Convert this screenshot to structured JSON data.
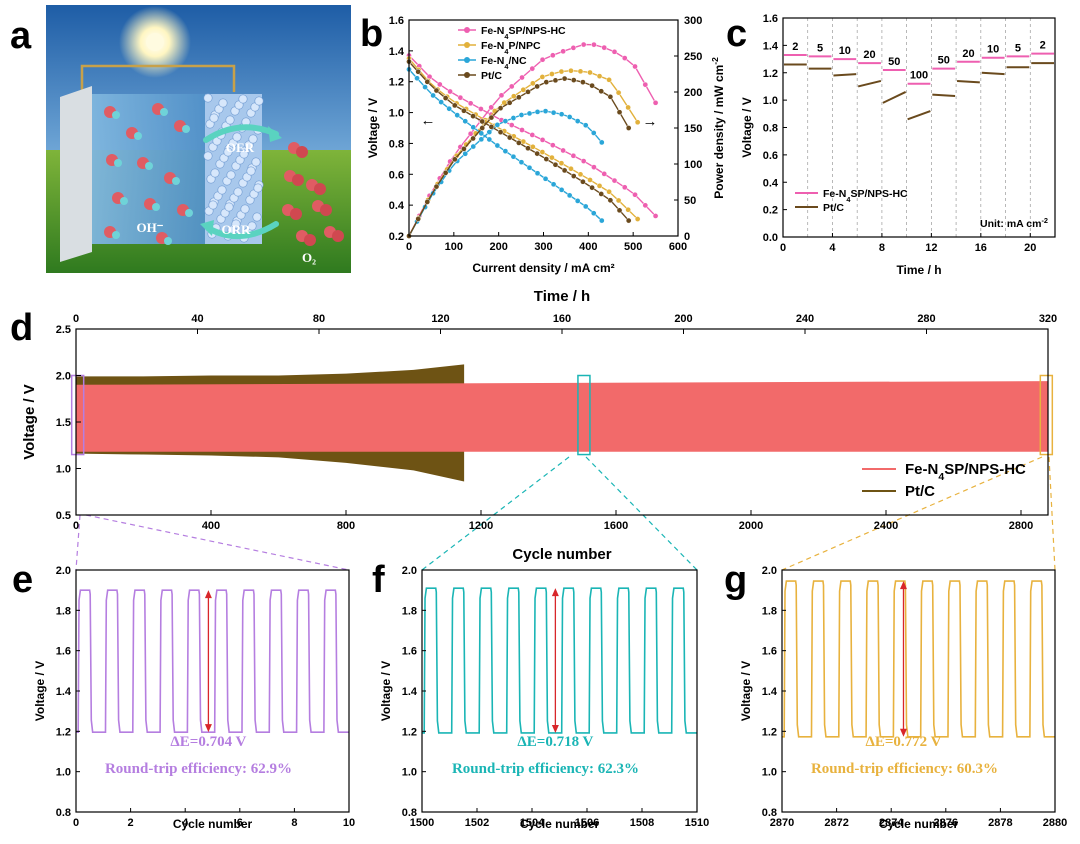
{
  "panel_labels": [
    "a",
    "b",
    "c",
    "d",
    "e",
    "f",
    "g"
  ],
  "schematic": {
    "labels": {
      "oer": "OER",
      "orr": "ORR",
      "oh": "OH⁻",
      "o2": "O₂"
    },
    "colors": {
      "sky": "#2d6fb0",
      "grass": "#3f8f2a",
      "electrolyte": "#8fc4e8",
      "arrow": "#5ad3c0"
    }
  },
  "colors": {
    "fe_sp": "#ee5fb0",
    "fe_p": "#e2b13b",
    "fe_nc": "#2aa6d8",
    "ptc": "#6a4a1d",
    "d_fe": "#f26a6a",
    "d_pt": "#6e5314",
    "e": "#b57ee0",
    "f": "#1ab5b5",
    "g": "#e8b23e",
    "red": "#d8262a"
  },
  "chart_data": [
    {
      "panel": "b",
      "type": "line",
      "xlabel": "Current density / mA cm²",
      "ylabel": "Voltage / V",
      "y2label": "Power density / mW cm⁻²",
      "xlim": [
        0,
        600
      ],
      "ylim": [
        0.2,
        1.6
      ],
      "y2lim": [
        0,
        300
      ],
      "xticks": [
        0,
        100,
        200,
        300,
        400,
        500,
        600
      ],
      "yticks": [
        0.2,
        0.4,
        0.6,
        0.8,
        1.0,
        1.2,
        1.4,
        1.6
      ],
      "y2ticks": [
        0,
        50,
        100,
        150,
        200,
        250,
        300
      ],
      "legend": [
        "Fe-N₄SP/NPS-HC",
        "Fe-N₄P/NPC",
        "Fe-N₄/NC",
        "Pt/C"
      ],
      "series": [
        {
          "name": "Fe-N₄SP/NPS-HC",
          "jmax": 550,
          "voltage": [
            [
              0,
              1.37
            ],
            [
              50,
              1.22
            ],
            [
              100,
              1.12
            ],
            [
              200,
              0.96
            ],
            [
              300,
              0.82
            ],
            [
              400,
              0.67
            ],
            [
              500,
              0.48
            ],
            [
              550,
              0.33
            ]
          ],
          "power": [
            [
              0,
              0
            ],
            [
              50,
              61
            ],
            [
              100,
              112
            ],
            [
              200,
              192
            ],
            [
              300,
              246
            ],
            [
              350,
              258
            ],
            [
              400,
              268
            ],
            [
              450,
              259
            ],
            [
              500,
              240
            ],
            [
              550,
              185
            ]
          ]
        },
        {
          "name": "Fe-N₄P/NPC",
          "jmax": 510,
          "voltage": [
            [
              0,
              1.35
            ],
            [
              50,
              1.18
            ],
            [
              100,
              1.07
            ],
            [
              200,
              0.9
            ],
            [
              300,
              0.74
            ],
            [
              400,
              0.57
            ],
            [
              450,
              0.48
            ],
            [
              510,
              0.31
            ]
          ],
          "power": [
            [
              0,
              0
            ],
            [
              50,
              59
            ],
            [
              100,
              107
            ],
            [
              200,
              180
            ],
            [
              300,
              222
            ],
            [
              350,
              230
            ],
            [
              400,
              228
            ],
            [
              450,
              216
            ],
            [
              510,
              158
            ]
          ]
        },
        {
          "name": "Fe-N₄/NC",
          "jmax": 430,
          "voltage": [
            [
              0,
              1.28
            ],
            [
              50,
              1.12
            ],
            [
              100,
              1.0
            ],
            [
              200,
              0.78
            ],
            [
              300,
              0.58
            ],
            [
              400,
              0.38
            ],
            [
              430,
              0.3
            ]
          ],
          "power": [
            [
              0,
              0
            ],
            [
              50,
              56
            ],
            [
              100,
              100
            ],
            [
              200,
              156
            ],
            [
              250,
              168
            ],
            [
              300,
              174
            ],
            [
              350,
              168
            ],
            [
              400,
              152
            ],
            [
              430,
              130
            ]
          ]
        },
        {
          "name": "Pt/C",
          "jmax": 490,
          "voltage": [
            [
              0,
              1.33
            ],
            [
              50,
              1.17
            ],
            [
              100,
              1.05
            ],
            [
              200,
              0.88
            ],
            [
              300,
              0.71
            ],
            [
              400,
              0.53
            ],
            [
              450,
              0.43
            ],
            [
              490,
              0.3
            ]
          ],
          "power": [
            [
              0,
              0
            ],
            [
              50,
              58
            ],
            [
              100,
              105
            ],
            [
              200,
              176
            ],
            [
              300,
              213
            ],
            [
              350,
              219
            ],
            [
              400,
              212
            ],
            [
              450,
              193
            ],
            [
              490,
              150
            ]
          ]
        }
      ],
      "arrow_labels": [
        "←",
        "→"
      ]
    },
    {
      "panel": "c",
      "type": "line",
      "xlabel": "Time / h",
      "ylabel": "Voltage / V",
      "xlim": [
        0,
        22
      ],
      "ylim": [
        0,
        1.6
      ],
      "xticks": [
        0,
        4,
        8,
        12,
        16,
        20
      ],
      "yticks": [
        0.0,
        0.2,
        0.4,
        0.6,
        0.8,
        1.0,
        1.2,
        1.4,
        1.6
      ],
      "step_labels": [
        "2",
        "5",
        "10",
        "20",
        "50",
        "100",
        "50",
        "20",
        "10",
        "5",
        "2"
      ],
      "fe": [
        1.33,
        1.32,
        1.3,
        1.27,
        1.22,
        1.12,
        1.23,
        1.28,
        1.31,
        1.32,
        1.34
      ],
      "pt_start": [
        1.26,
        1.23,
        1.18,
        1.1,
        0.98,
        0.86,
        1.04,
        1.14,
        1.2,
        1.24,
        1.27
      ],
      "pt_end": [
        1.26,
        1.23,
        1.19,
        1.14,
        1.06,
        0.92,
        1.03,
        1.13,
        1.19,
        1.24,
        1.27
      ],
      "legend": [
        "Fe-N₄SP/NPS-HC",
        "Pt/C"
      ],
      "unit": "Unit: mA cm⁻²"
    },
    {
      "panel": "d",
      "type": "area",
      "xlabel": "Cycle number",
      "x2label": "Time / h",
      "ylabel": "Voltage / V",
      "xlim": [
        0,
        2880
      ],
      "x2lim": [
        0,
        320
      ],
      "ylim": [
        0.5,
        2.5
      ],
      "xticks": [
        0,
        400,
        800,
        1200,
        1600,
        2000,
        2400,
        2800
      ],
      "x2ticks": [
        0,
        40,
        80,
        120,
        160,
        200,
        240,
        280,
        320
      ],
      "yticks": [
        0.5,
        1.0,
        1.5,
        2.0,
        2.5
      ],
      "pt_band": {
        "x": [
          0,
          200,
          400,
          600,
          800,
          1000,
          1150
        ],
        "upper": [
          1.99,
          1.99,
          2.0,
          2.0,
          2.02,
          2.06,
          2.12
        ],
        "lower": [
          1.16,
          1.15,
          1.14,
          1.12,
          1.06,
          0.98,
          0.86
        ]
      },
      "fe_band": {
        "x": [
          0,
          2880
        ],
        "upper": [
          1.9,
          1.94
        ],
        "lower": [
          1.18,
          1.18
        ]
      },
      "zoom_windows": [
        [
          0,
          10
        ],
        [
          1500,
          1510
        ],
        [
          2870,
          2880
        ]
      ],
      "legend": [
        "Fe-N₄SP/NPS-HC",
        "Pt/C"
      ]
    },
    {
      "panel": "e",
      "type": "line",
      "xlabel": "Cycle number",
      "ylabel": "Voltage / V",
      "xlim": [
        0,
        10
      ],
      "ylim": [
        0.8,
        2.0
      ],
      "xticks": [
        0,
        2,
        4,
        6,
        8,
        10
      ],
      "yticks": [
        0.8,
        1.0,
        1.2,
        1.4,
        1.6,
        1.8,
        2.0
      ],
      "charge": 1.9,
      "discharge": 1.196,
      "first_cycle": 0,
      "marker_x": 4.85,
      "delta_e": "ΔE=0.704 V",
      "efficiency": "Round-trip efficiency: 62.9%"
    },
    {
      "panel": "f",
      "type": "line",
      "xlabel": "Cycle number",
      "ylabel": "Voltage / V",
      "xlim": [
        1500,
        1510
      ],
      "ylim": [
        0.8,
        2.0
      ],
      "xticks": [
        1500,
        1502,
        1504,
        1506,
        1508,
        1510
      ],
      "yticks": [
        0.8,
        1.0,
        1.2,
        1.4,
        1.6,
        1.8,
        2.0
      ],
      "charge": 1.91,
      "discharge": 1.192,
      "first_cycle": 1500,
      "marker_x": 1504.85,
      "delta_e": "ΔE=0.718 V",
      "efficiency": "Round-trip efficiency: 62.3%"
    },
    {
      "panel": "g",
      "type": "line",
      "xlabel": "Cycle number",
      "ylabel": "Voltage / V",
      "xlim": [
        2870,
        2880
      ],
      "ylim": [
        0.8,
        2.0
      ],
      "xticks": [
        2870,
        2872,
        2874,
        2876,
        2878,
        2880
      ],
      "yticks": [
        0.8,
        1.0,
        1.2,
        1.4,
        1.6,
        1.8,
        2.0
      ],
      "charge": 1.945,
      "discharge": 1.173,
      "first_cycle": 2870,
      "marker_x": 2874.45,
      "delta_e": "ΔE=0.772 V",
      "efficiency": "Round-trip efficiency: 60.3%"
    }
  ]
}
